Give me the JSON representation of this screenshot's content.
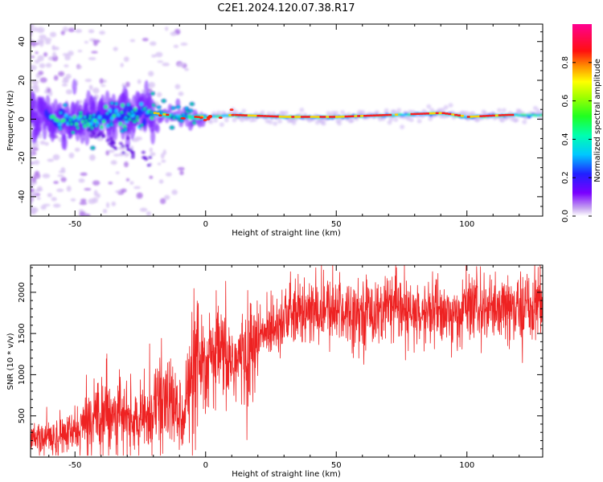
{
  "title": "C2E1.2024.120.07.38.R17",
  "chart_data": [
    {
      "type": "heatmap",
      "xlabel": "Height of straight line (km)",
      "ylabel": "Frequency (Hz)",
      "xlim": [
        -67,
        129
      ],
      "ylim": [
        -50,
        49
      ],
      "x_ticks": [
        -50,
        0,
        50,
        100
      ],
      "y_ticks": [
        -40,
        -20,
        0,
        20,
        40
      ],
      "colorbar": {
        "label": "Normalized spectral amplitude",
        "range": [
          0,
          1
        ],
        "ticks": [
          0.0,
          0.2,
          0.4,
          0.6,
          0.8
        ],
        "colormap": "rainbow (white-purple-blue-cyan-green-yellow-red-magenta)"
      },
      "ridge_centers": [
        {
          "x": -60,
          "y": 0
        },
        {
          "x": -50,
          "y": -1
        },
        {
          "x": -40,
          "y": 0
        },
        {
          "x": -30,
          "y": 2
        },
        {
          "x": -20,
          "y": 3
        },
        {
          "x": -10,
          "y": 1
        },
        {
          "x": 0,
          "y": 1
        },
        {
          "x": 10,
          "y": 2
        },
        {
          "x": 30,
          "y": 1
        },
        {
          "x": 50,
          "y": 1
        },
        {
          "x": 70,
          "y": 2
        },
        {
          "x": 90,
          "y": 3
        },
        {
          "x": 100,
          "y": 1
        },
        {
          "x": 115,
          "y": 2
        },
        {
          "x": 129,
          "y": 2
        }
      ]
    },
    {
      "type": "line",
      "xlabel": "Height of straight line (km)",
      "ylabel": "SNR (10 * v/v)",
      "xlim": [
        -67,
        129
      ],
      "ylim": [
        0,
        2330
      ],
      "x_ticks": [
        -50,
        0,
        50,
        100
      ],
      "y_ticks": [
        500,
        1000,
        1500,
        2000
      ],
      "series": [
        {
          "color": "#ee2222",
          "trend_x": [
            -67,
            -60,
            -50,
            -45,
            -40,
            -35,
            -30,
            -25,
            -20,
            -15,
            -10,
            -5,
            0,
            5,
            10,
            15,
            20,
            25,
            30,
            40,
            50,
            60,
            70,
            80,
            90,
            95,
            100,
            110,
            120,
            129
          ],
          "trend_y": [
            200,
            220,
            300,
            420,
            600,
            550,
            450,
            400,
            600,
            700,
            500,
            900,
            1100,
            1250,
            1150,
            1200,
            1400,
            1600,
            1700,
            1750,
            1780,
            1760,
            1800,
            1700,
            1800,
            1650,
            1850,
            1750,
            1800,
            1900
          ]
        }
      ]
    }
  ]
}
